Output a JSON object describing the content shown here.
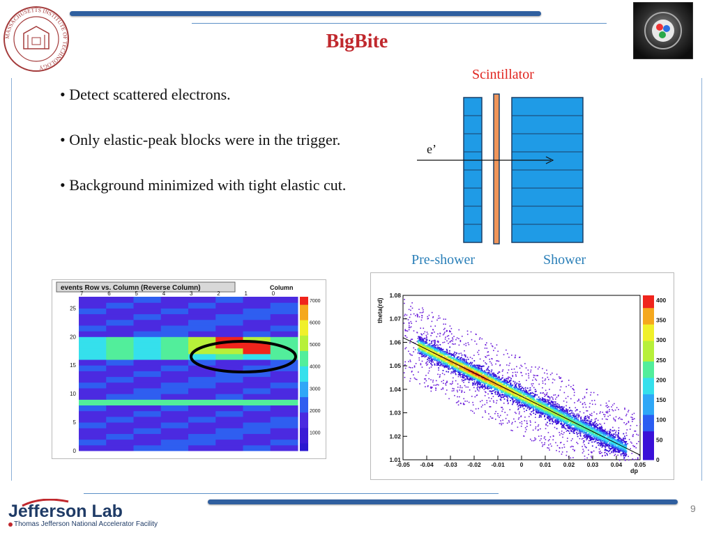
{
  "slide": {
    "title": "BigBite",
    "bullets": [
      "• Detect scattered electrons.",
      "• Only elastic-peak blocks were in the trigger.",
      "• Background minimized with tight elastic cut."
    ],
    "page_number": "9"
  },
  "logos": {
    "mit_seal_text": "MASSACHUSETTS INSTITUTE OF TECHNOLOGY",
    "jlab_name": "Jefferson Lab",
    "jlab_subtitle": "Thomas Jefferson National Accelerator Facility"
  },
  "detector": {
    "scintillator_label": "Scintillator",
    "particle_label": "e’",
    "preshower_label": "Pre-shower",
    "shower_label": "Shower",
    "colors": {
      "block": "#1f9be6",
      "scint": "#f0955a",
      "label_red": "#e0251f",
      "label_blue": "#2a7fb8"
    }
  },
  "chart_data": [
    {
      "type": "heatmap",
      "title": "events Row vs. Column (Reverse Column)",
      "xlabel": "Column",
      "x_ticks": [
        "7",
        "6",
        "5",
        "4",
        "3",
        "2",
        "1",
        "0"
      ],
      "y_ticks": [
        "0",
        "5",
        "10",
        "15",
        "20",
        "25"
      ],
      "color_scale_ticks": [
        "1000",
        "2000",
        "3000",
        "4000",
        "5000",
        "6000",
        "7000"
      ],
      "hot_region": {
        "rows": [
          17,
          19
        ],
        "columns": [
          1,
          3
        ],
        "max": 7000
      }
    },
    {
      "type": "scatter",
      "xlabel": "dp",
      "ylabel": "theta(rd)",
      "xlim": [
        -0.05,
        0.05
      ],
      "ylim": [
        1.01,
        1.08
      ],
      "x_ticks": [
        "-0.05",
        "-0.04",
        "-0.03",
        "-0.02",
        "-0.01",
        "0",
        "0.01",
        "0.02",
        "0.03",
        "0.04",
        "0.05"
      ],
      "y_ticks": [
        "1.01",
        "1.02",
        "1.03",
        "1.04",
        "1.05",
        "1.06",
        "1.07",
        "1.08"
      ],
      "color_scale_ticks": [
        "0",
        "50",
        "100",
        "150",
        "200",
        "250",
        "300",
        "350",
        "400"
      ],
      "fit_line": {
        "x": [
          -0.05,
          0.05
        ],
        "y": [
          1.062,
          1.012
        ]
      }
    }
  ]
}
